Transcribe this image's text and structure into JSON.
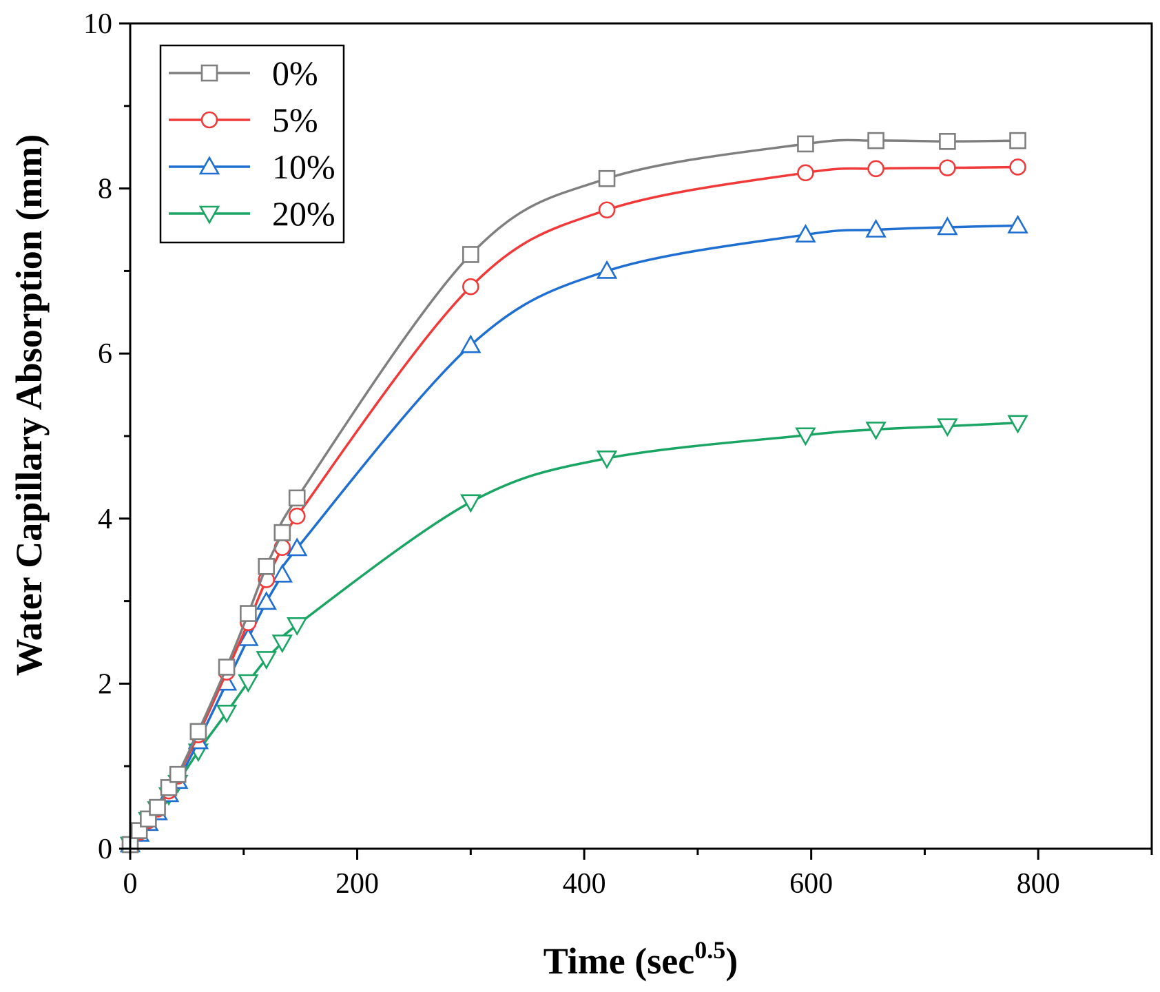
{
  "chart_data": {
    "type": "line",
    "title": "",
    "xlabel": "Time (sec",
    "xlabel_superscript": "0.5",
    "xlabel_suffix": ")",
    "ylabel": "Water Capillary Absorption (mm)",
    "xlim": [
      0,
      900
    ],
    "ylim": [
      0,
      10
    ],
    "x_ticks": [
      0,
      200,
      400,
      600,
      800
    ],
    "x_tick_labels": [
      "0",
      "200",
      "400",
      "600",
      "800"
    ],
    "y_ticks": [
      0,
      2,
      4,
      6,
      8,
      10
    ],
    "y_tick_labels": [
      "0",
      "2",
      "4",
      "6",
      "8",
      "10"
    ],
    "x_minor_step": 100,
    "y_minor_step": 1,
    "grid": false,
    "legend_position": "top-left",
    "x": [
      0,
      8,
      16,
      24,
      34,
      42,
      60,
      85,
      104,
      120,
      134,
      147,
      300,
      420,
      595,
      657,
      720,
      782
    ],
    "series": [
      {
        "name": "0%",
        "color": "#7f7f7f",
        "marker": "square",
        "values": [
          0.05,
          0.22,
          0.36,
          0.5,
          0.74,
          0.9,
          1.42,
          2.2,
          2.85,
          3.42,
          3.83,
          4.25,
          7.2,
          8.12,
          8.54,
          8.58,
          8.57,
          8.58
        ]
      },
      {
        "name": "5%",
        "color": "#f03a3a",
        "marker": "circle",
        "values": [
          0.05,
          0.2,
          0.34,
          0.48,
          0.7,
          0.88,
          1.38,
          2.14,
          2.74,
          3.26,
          3.65,
          4.03,
          6.81,
          7.74,
          8.19,
          8.24,
          8.25,
          8.26
        ]
      },
      {
        "name": "10%",
        "color": "#1f6fd1",
        "marker": "triangle-up",
        "values": [
          0.05,
          0.18,
          0.31,
          0.44,
          0.66,
          0.82,
          1.3,
          2.01,
          2.55,
          2.99,
          3.32,
          3.64,
          6.1,
          7.0,
          7.44,
          7.5,
          7.53,
          7.55
        ]
      },
      {
        "name": "20%",
        "color": "#1aa564",
        "marker": "triangle-down",
        "values": [
          0.05,
          0.22,
          0.35,
          0.48,
          0.65,
          0.8,
          1.18,
          1.65,
          2.02,
          2.3,
          2.5,
          2.71,
          4.2,
          4.73,
          5.01,
          5.08,
          5.12,
          5.16
        ]
      }
    ]
  }
}
